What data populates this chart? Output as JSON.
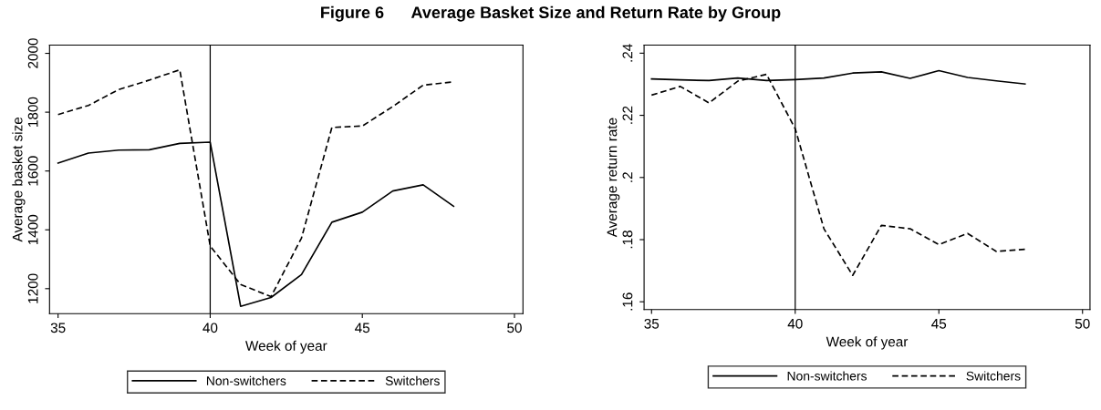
{
  "chart_data": [
    {
      "type": "line",
      "title": "Figure 6      Average Basket Size and Return Rate by Group",
      "xlabel": "Week of year",
      "ylabel": "Average basket size",
      "x": [
        35,
        36,
        37,
        38,
        39,
        40,
        41,
        42,
        43,
        44,
        45,
        46,
        47,
        48
      ],
      "series": [
        {
          "name": "Non-switchers",
          "color": "#000000",
          "line_style": "solid",
          "values": [
            1627,
            1661,
            1671,
            1672,
            1694,
            1698,
            1140,
            1170,
            1248,
            1426,
            1460,
            1532,
            1553,
            1480
          ]
        },
        {
          "name": "Switchers",
          "color": "#000000",
          "line_style": "dashed",
          "values": [
            1792,
            1823,
            1877,
            1909,
            1944,
            1345,
            1214,
            1173,
            1372,
            1748,
            1753,
            1819,
            1892,
            1903
          ]
        }
      ],
      "xlim": [
        34.72,
        50.28
      ],
      "xticks": [
        35,
        40,
        45,
        50
      ],
      "ylim": [
        1115,
        2028
      ],
      "yticks": [
        1200,
        1400,
        1600,
        1800,
        2000
      ],
      "ref_lines": [
        {
          "axis": "x",
          "value": 40,
          "color": "#000000"
        }
      ],
      "legend": "bottom",
      "grid": false
    },
    {
      "type": "line",
      "xlabel": "Week of year",
      "ylabel": "Average return rate",
      "x": [
        35,
        36,
        37,
        38,
        39,
        40,
        41,
        42,
        43,
        44,
        45,
        46,
        47,
        48
      ],
      "series": [
        {
          "name": "Non-switchers",
          "color": "#000000",
          "line_style": "solid",
          "values": [
            0.2317,
            0.2314,
            0.2312,
            0.232,
            0.2312,
            0.2315,
            0.232,
            0.2336,
            0.234,
            0.2319,
            0.2344,
            0.2322,
            0.2311,
            0.2301
          ]
        },
        {
          "name": "Switchers",
          "color": "#000000",
          "line_style": "dashed",
          "values": [
            0.2265,
            0.2293,
            0.224,
            0.231,
            0.2332,
            0.2157,
            0.1835,
            0.1685,
            0.1846,
            0.1835,
            0.1784,
            0.182,
            0.1762,
            0.1769
          ]
        }
      ],
      "xlim": [
        34.74,
        50.26
      ],
      "xticks": [
        35,
        40,
        45,
        50
      ],
      "ylim": [
        0.1575,
        0.2426
      ],
      "yticks": [
        {
          "value": 0.16,
          "label": ".16"
        },
        {
          "value": 0.18,
          "label": ".18"
        },
        {
          "value": 0.2,
          "label": ".2"
        },
        {
          "value": 0.22,
          "label": ".22"
        },
        {
          "value": 0.24,
          "label": ".24"
        }
      ],
      "ref_lines": [
        {
          "axis": "x",
          "value": 40,
          "color": "#000000"
        }
      ],
      "legend": "bottom",
      "grid": false
    }
  ]
}
